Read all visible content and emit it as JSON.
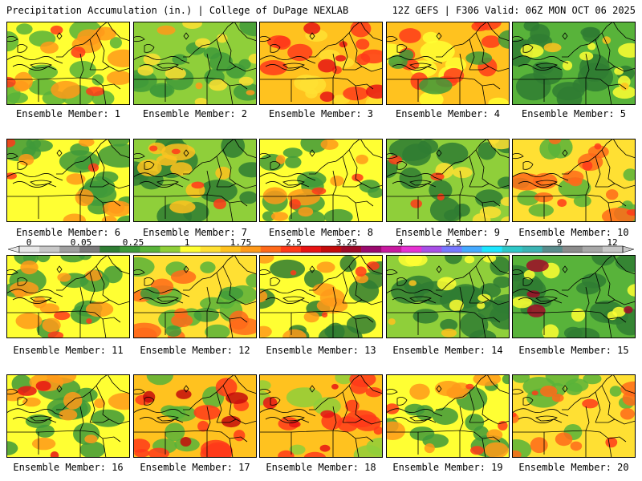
{
  "header": {
    "title": "Precipitation Accumulation (in.) | College of DuPage NEXLAB",
    "run_info": "12Z GEFS | F306 Valid: 06Z MON OCT 06 2025"
  },
  "colors": {
    "scale": [
      "#e8e8e8",
      "#c8c8c8",
      "#a0a0a0",
      "#7a7a7a",
      "#2f7d33",
      "#3f9a3a",
      "#58b33a",
      "#8fcf3a",
      "#ffff33",
      "#ffe033",
      "#ffc21f",
      "#ff9a1a",
      "#ff6a1a",
      "#ff3a1a",
      "#e81414",
      "#c40c0c",
      "#a00a28",
      "#9a0a6e",
      "#c81aa0",
      "#e632d2",
      "#a850e6",
      "#7878ff",
      "#46aaff",
      "#1ee6ff",
      "#30c8c8",
      "#3cb4b4",
      "#5a8c8c",
      "#8c8c8c",
      "#a8a8a8",
      "#c8c8c8"
    ]
  },
  "colorbar": {
    "labels": [
      "0",
      "0.05",
      "0.25",
      "1",
      "1.75",
      "2.5",
      "3.25",
      "4",
      "5.5",
      "7",
      "9",
      "12"
    ]
  },
  "panels": [
    {
      "caption": "Ensemble Member: 1"
    },
    {
      "caption": "Ensemble Member: 2"
    },
    {
      "caption": "Ensemble Member: 3"
    },
    {
      "caption": "Ensemble Member: 4"
    },
    {
      "caption": "Ensemble Member: 5"
    },
    {
      "caption": "Ensemble Member: 6"
    },
    {
      "caption": "Ensemble Member: 7"
    },
    {
      "caption": "Ensemble Member: 8"
    },
    {
      "caption": "Ensemble Member: 9"
    },
    {
      "caption": "Ensemble Member: 10"
    },
    {
      "caption": "Ensemble Member: 11"
    },
    {
      "caption": "Ensemble Member: 12"
    },
    {
      "caption": "Ensemble Member: 13"
    },
    {
      "caption": "Ensemble Member: 14"
    },
    {
      "caption": "Ensemble Member: 15"
    },
    {
      "caption": "Ensemble Member: 16"
    },
    {
      "caption": "Ensemble Member: 17"
    },
    {
      "caption": "Ensemble Member: 18"
    },
    {
      "caption": "Ensemble Member: 19"
    },
    {
      "caption": "Ensemble Member: 20"
    }
  ]
}
